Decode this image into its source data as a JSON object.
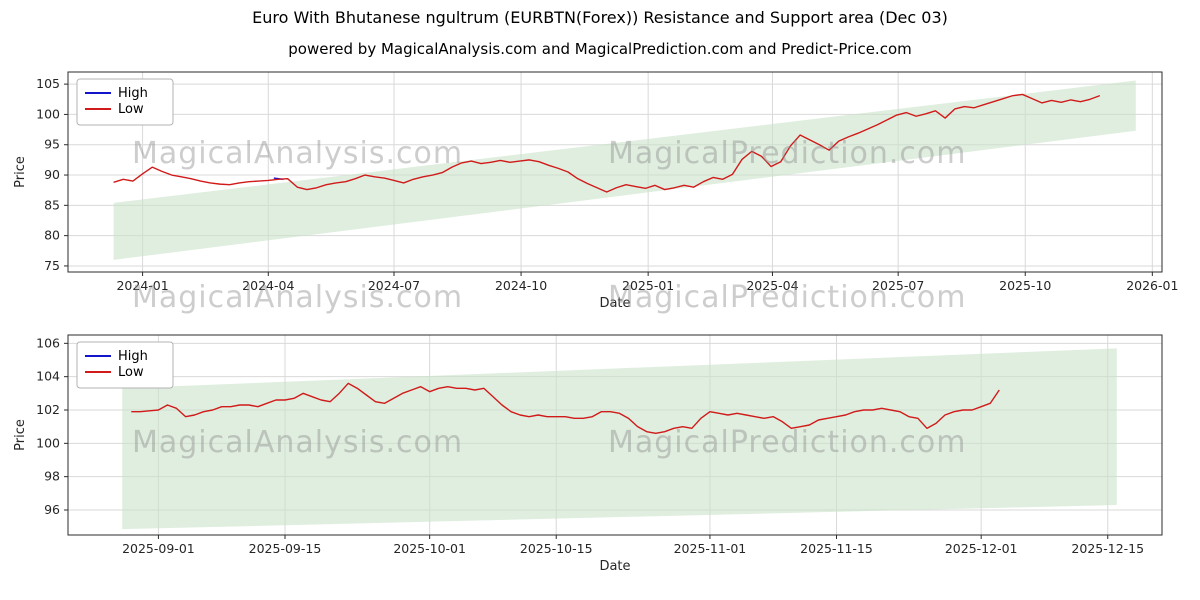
{
  "title": "Euro With Bhutanese ngultrum (EURBTN(Forex)) Resistance and Support area (Dec 03)",
  "subtitle": "powered by MagicalAnalysis.com and MagicalPrediction.com and Predict-Price.com",
  "watermarks": {
    "analysis": "MagicalAnalysis.com",
    "prediction": "MagicalPrediction.com"
  },
  "colors": {
    "high": "#1414cc",
    "low": "#d11a1a",
    "band": "#c9e3c9",
    "grid": "#d9d9d9",
    "spine": "#2b2b2b",
    "tick_text": "#262626"
  },
  "chart_data": [
    {
      "type": "line",
      "xlabel": "Date",
      "ylabel": "Price",
      "grid": true,
      "legend_position": "upper left",
      "xlim": [
        "2023-11-08",
        "2026-01-08"
      ],
      "ylim": [
        74,
        107
      ],
      "yticks": [
        75,
        80,
        85,
        90,
        95,
        100,
        105
      ],
      "xticks": [
        {
          "v": "2024-01-01",
          "label": "2024-01"
        },
        {
          "v": "2024-04-01",
          "label": "2024-04"
        },
        {
          "v": "2024-07-01",
          "label": "2024-07"
        },
        {
          "v": "2024-10-01",
          "label": "2024-10"
        },
        {
          "v": "2025-01-01",
          "label": "2025-01"
        },
        {
          "v": "2025-04-01",
          "label": "2025-04"
        },
        {
          "v": "2025-07-01",
          "label": "2025-07"
        },
        {
          "v": "2025-10-01",
          "label": "2025-10"
        },
        {
          "v": "2026-01-01",
          "label": "2026-01"
        }
      ],
      "legend": [
        {
          "name": "High",
          "color": "high"
        },
        {
          "name": "Low",
          "color": "low"
        }
      ],
      "band": {
        "x": [
          "2023-12-11",
          "2025-12-20"
        ],
        "lower": [
          76.0,
          97.3
        ],
        "upper": [
          85.4,
          105.6
        ]
      },
      "series": [
        {
          "name": "High",
          "color": "high",
          "x": [
            "2024-04-05",
            "2024-04-12"
          ],
          "y": [
            89.5,
            89.3
          ]
        },
        {
          "name": "Low",
          "color": "low",
          "x": [
            "2023-12-11",
            "2023-12-18",
            "2023-12-25",
            "2024-01-01",
            "2024-01-08",
            "2024-01-15",
            "2024-01-22",
            "2024-01-29",
            "2024-02-05",
            "2024-02-12",
            "2024-02-19",
            "2024-02-26",
            "2024-03-04",
            "2024-03-11",
            "2024-03-18",
            "2024-03-25",
            "2024-04-01",
            "2024-04-08",
            "2024-04-15",
            "2024-04-22",
            "2024-04-29",
            "2024-05-06",
            "2024-05-13",
            "2024-05-20",
            "2024-05-27",
            "2024-06-03",
            "2024-06-10",
            "2024-06-17",
            "2024-06-24",
            "2024-07-01",
            "2024-07-08",
            "2024-07-15",
            "2024-07-22",
            "2024-07-29",
            "2024-08-05",
            "2024-08-12",
            "2024-08-19",
            "2024-08-26",
            "2024-09-02",
            "2024-09-09",
            "2024-09-16",
            "2024-09-23",
            "2024-09-30",
            "2024-10-07",
            "2024-10-14",
            "2024-10-21",
            "2024-10-28",
            "2024-11-04",
            "2024-11-11",
            "2024-11-18",
            "2024-11-25",
            "2024-12-02",
            "2024-12-09",
            "2024-12-16",
            "2024-12-23",
            "2024-12-30",
            "2025-01-06",
            "2025-01-13",
            "2025-01-20",
            "2025-01-27",
            "2025-02-03",
            "2025-02-10",
            "2025-02-17",
            "2025-02-24",
            "2025-03-03",
            "2025-03-10",
            "2025-03-17",
            "2025-03-24",
            "2025-03-31",
            "2025-04-07",
            "2025-04-14",
            "2025-04-21",
            "2025-04-28",
            "2025-05-05",
            "2025-05-12",
            "2025-05-19",
            "2025-05-26",
            "2025-06-02",
            "2025-06-09",
            "2025-06-16",
            "2025-06-23",
            "2025-06-30",
            "2025-07-07",
            "2025-07-14",
            "2025-07-21",
            "2025-07-28",
            "2025-08-04",
            "2025-08-11",
            "2025-08-18",
            "2025-08-25",
            "2025-09-01",
            "2025-09-08",
            "2025-09-15",
            "2025-09-22",
            "2025-09-29",
            "2025-10-06",
            "2025-10-13",
            "2025-10-20",
            "2025-10-27",
            "2025-11-03",
            "2025-11-10",
            "2025-11-17",
            "2025-11-24"
          ],
          "y": [
            88.8,
            89.3,
            89.0,
            90.2,
            91.3,
            90.6,
            90.0,
            89.7,
            89.4,
            89.0,
            88.7,
            88.5,
            88.4,
            88.7,
            88.9,
            89.0,
            89.1,
            89.3,
            89.4,
            88.0,
            87.6,
            87.9,
            88.4,
            88.7,
            88.9,
            89.4,
            90.0,
            89.7,
            89.5,
            89.1,
            88.7,
            89.3,
            89.7,
            90.0,
            90.4,
            91.3,
            92.0,
            92.3,
            91.9,
            92.1,
            92.4,
            92.1,
            92.3,
            92.5,
            92.2,
            91.6,
            91.1,
            90.5,
            89.4,
            88.6,
            87.9,
            87.2,
            87.9,
            88.4,
            88.1,
            87.8,
            88.3,
            87.6,
            87.9,
            88.3,
            88.0,
            88.9,
            89.6,
            89.3,
            90.1,
            92.6,
            93.9,
            93.1,
            91.4,
            92.2,
            94.8,
            96.6,
            95.8,
            95.0,
            94.1,
            95.6,
            96.3,
            96.9,
            97.6,
            98.3,
            99.1,
            99.9,
            100.3,
            99.7,
            100.1,
            100.6,
            99.4,
            100.9,
            101.3,
            101.1,
            101.6,
            102.1,
            102.6,
            103.1,
            103.3,
            102.6,
            101.9,
            102.3,
            102.0,
            102.4,
            102.1,
            102.5,
            103.1
          ]
        }
      ]
    },
    {
      "type": "line",
      "xlabel": "Date",
      "ylabel": "Price",
      "grid": true,
      "legend_position": "upper left",
      "xlim": [
        "2025-08-22",
        "2025-12-21"
      ],
      "ylim": [
        94.5,
        106.5
      ],
      "yticks": [
        96,
        98,
        100,
        102,
        104,
        106
      ],
      "xticks": [
        {
          "v": "2025-09-01",
          "label": "2025-09-01"
        },
        {
          "v": "2025-09-15",
          "label": "2025-09-15"
        },
        {
          "v": "2025-10-01",
          "label": "2025-10-01"
        },
        {
          "v": "2025-10-15",
          "label": "2025-10-15"
        },
        {
          "v": "2025-11-01",
          "label": "2025-11-01"
        },
        {
          "v": "2025-11-15",
          "label": "2025-11-15"
        },
        {
          "v": "2025-12-01",
          "label": "2025-12-01"
        },
        {
          "v": "2025-12-15",
          "label": "2025-12-15"
        }
      ],
      "legend": [
        {
          "name": "High",
          "color": "high"
        },
        {
          "name": "Low",
          "color": "low"
        }
      ],
      "band": {
        "x": [
          "2025-08-28",
          "2025-12-16"
        ],
        "lower": [
          94.85,
          96.3
        ],
        "upper": [
          103.3,
          105.7
        ]
      },
      "series": [
        {
          "name": "Low",
          "color": "low",
          "x": [
            "2025-08-29",
            "2025-08-30",
            "2025-08-31",
            "2025-09-01",
            "2025-09-02",
            "2025-09-03",
            "2025-09-04",
            "2025-09-05",
            "2025-09-06",
            "2025-09-07",
            "2025-09-08",
            "2025-09-09",
            "2025-09-10",
            "2025-09-11",
            "2025-09-12",
            "2025-09-13",
            "2025-09-14",
            "2025-09-15",
            "2025-09-16",
            "2025-09-17",
            "2025-09-18",
            "2025-09-19",
            "2025-09-20",
            "2025-09-21",
            "2025-09-22",
            "2025-09-23",
            "2025-09-24",
            "2025-09-25",
            "2025-09-26",
            "2025-09-27",
            "2025-09-28",
            "2025-09-29",
            "2025-09-30",
            "2025-10-01",
            "2025-10-02",
            "2025-10-03",
            "2025-10-04",
            "2025-10-05",
            "2025-10-06",
            "2025-10-07",
            "2025-10-08",
            "2025-10-09",
            "2025-10-10",
            "2025-10-11",
            "2025-10-12",
            "2025-10-13",
            "2025-10-14",
            "2025-10-15",
            "2025-10-16",
            "2025-10-17",
            "2025-10-18",
            "2025-10-19",
            "2025-10-20",
            "2025-10-21",
            "2025-10-22",
            "2025-10-23",
            "2025-10-24",
            "2025-10-25",
            "2025-10-26",
            "2025-10-27",
            "2025-10-28",
            "2025-10-29",
            "2025-10-30",
            "2025-10-31",
            "2025-11-01",
            "2025-11-02",
            "2025-11-03",
            "2025-11-04",
            "2025-11-05",
            "2025-11-06",
            "2025-11-07",
            "2025-11-08",
            "2025-11-09",
            "2025-11-10",
            "2025-11-11",
            "2025-11-12",
            "2025-11-13",
            "2025-11-14",
            "2025-11-15",
            "2025-11-16",
            "2025-11-17",
            "2025-11-18",
            "2025-11-19",
            "2025-11-20",
            "2025-11-21",
            "2025-11-22",
            "2025-11-23",
            "2025-11-24",
            "2025-11-25",
            "2025-11-26",
            "2025-11-27",
            "2025-11-28",
            "2025-11-29",
            "2025-11-30",
            "2025-12-01",
            "2025-12-02",
            "2025-12-03"
          ],
          "y": [
            101.9,
            101.9,
            101.95,
            102.0,
            102.3,
            102.1,
            101.6,
            101.7,
            101.9,
            102.0,
            102.2,
            102.2,
            102.3,
            102.3,
            102.2,
            102.4,
            102.6,
            102.6,
            102.7,
            103.0,
            102.8,
            102.6,
            102.5,
            103.0,
            103.6,
            103.3,
            102.9,
            102.5,
            102.4,
            102.7,
            103.0,
            103.2,
            103.4,
            103.1,
            103.3,
            103.4,
            103.3,
            103.3,
            103.2,
            103.3,
            102.8,
            102.3,
            101.9,
            101.7,
            101.6,
            101.7,
            101.6,
            101.6,
            101.6,
            101.5,
            101.5,
            101.6,
            101.9,
            101.9,
            101.8,
            101.5,
            101.0,
            100.7,
            100.6,
            100.7,
            100.9,
            101.0,
            100.9,
            101.5,
            101.9,
            101.8,
            101.7,
            101.8,
            101.7,
            101.6,
            101.5,
            101.6,
            101.3,
            100.9,
            101.0,
            101.1,
            101.4,
            101.5,
            101.6,
            101.7,
            101.9,
            102.0,
            102.0,
            102.1,
            102.0,
            101.9,
            101.6,
            101.5,
            100.9,
            101.2,
            101.7,
            101.9,
            102.0,
            102.0,
            102.2,
            102.4,
            103.2
          ]
        }
      ]
    }
  ]
}
